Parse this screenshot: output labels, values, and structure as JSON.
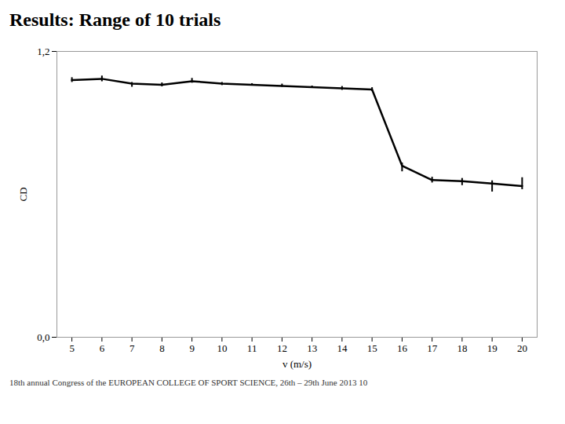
{
  "chart_data": {
    "type": "line",
    "title": "Results: Range of 10 trials",
    "caption": "18th annual Congress of the EUROPEAN COLLEGE OF SPORT SCIENCE, 26th – 29th June 2013   10",
    "x_label": "v (m/s)",
    "y_label": "CD",
    "x": [
      5,
      6,
      7,
      8,
      9,
      10,
      11,
      12,
      13,
      14,
      15,
      16,
      17,
      18,
      19,
      20
    ],
    "series": [
      {
        "values": [
          1.08,
          1.085,
          1.065,
          1.06,
          1.075,
          1.065,
          1.06,
          1.055,
          1.05,
          1.045,
          1.04,
          0.72,
          0.66,
          0.655,
          0.645,
          0.635
        ],
        "error_lower": [
          0.01,
          0.012,
          0.015,
          0.008,
          0.008,
          0.008,
          0.005,
          0.005,
          0.005,
          0.008,
          0.008,
          0.025,
          0.012,
          0.018,
          0.035,
          0.015
        ],
        "error_upper": [
          0.01,
          0.012,
          0.005,
          0.008,
          0.012,
          0.005,
          0.005,
          0.008,
          0.005,
          0.008,
          0.008,
          0.012,
          0.012,
          0.012,
          0.012,
          0.035
        ]
      }
    ],
    "xlim": [
      4.5,
      20.5
    ],
    "xticks": [
      5,
      6,
      7,
      8,
      9,
      10,
      11,
      12,
      13,
      14,
      15,
      16,
      17,
      18,
      19,
      20
    ],
    "ylim": [
      0.0,
      1.2
    ],
    "yticks": [
      {
        "value": 0.0,
        "label": "0,0"
      },
      {
        "value": 1.2,
        "label": "1,2"
      }
    ],
    "grid": true
  }
}
